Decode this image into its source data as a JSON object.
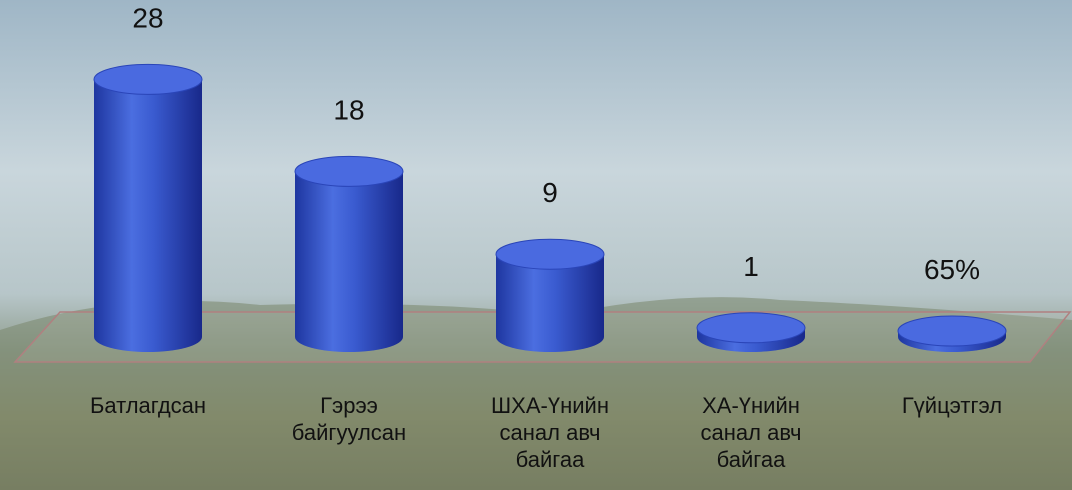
{
  "chart_data": {
    "type": "cylinder-bar",
    "categories": [
      "Батлагдсан",
      "Гэрээ байгуулсан",
      "ШХА-Үнийн санал авч байгаа",
      "ХА-Үнийн санал авч байгаа",
      "Гүйцэтгэл"
    ],
    "values": [
      28,
      18,
      9,
      1,
      0.65
    ],
    "value_labels": [
      "28",
      "18",
      "9",
      "1",
      "65%"
    ],
    "color": "#3355cc"
  }
}
